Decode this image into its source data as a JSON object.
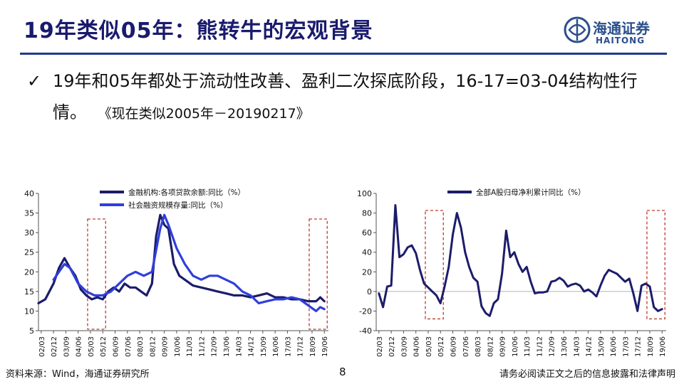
{
  "slide": {
    "title": "19年类似05年：熊转牛的宏观背景",
    "bullet_mark": "✓",
    "bullet_main": "19年和05年都处于流动性改善、盈利二次探底阶段，16-17=03-04结构性行情。",
    "bullet_citation": "《现在类似2005年－20190217》",
    "page_number": "8",
    "source": "资料来源：Wind，海通证券研究所",
    "disclaimer": "请务必阅读正文之后的信息披露和法律声明"
  },
  "logo": {
    "text_cn": "海通证券",
    "text_en": "HAITONG",
    "icon": "haitong-logo-icon",
    "color": "#2a4e8c"
  },
  "colors": {
    "title": "#1a1a6e",
    "rule": "#1f3b8a",
    "series_dark": "#1c1c6b",
    "series_bright": "#2f3fdc",
    "highlight": "#c0392b"
  },
  "chart_data": [
    {
      "type": "line",
      "ylim": [
        5,
        40
      ],
      "yticks": [
        5,
        10,
        15,
        20,
        25,
        30,
        35,
        40
      ],
      "x_tick_labels": [
        "02/03",
        "02/12",
        "03/09",
        "04/06",
        "05/03",
        "05/12",
        "06/09",
        "07/06",
        "08/03",
        "08/12",
        "09/09",
        "10/06",
        "11/03",
        "11/12",
        "12/09",
        "13/06",
        "14/03",
        "14/12",
        "15/09",
        "16/06",
        "17/03",
        "17/12",
        "18/09",
        "19/06"
      ],
      "highlight_ranges": [
        [
          "05/03",
          "05/12"
        ],
        [
          "18/09",
          "19/06"
        ]
      ],
      "legend_position": "top-left",
      "series": [
        {
          "name": "金融机构:各项贷款余额:同比（%）",
          "x": [
            "02/01",
            "02/06",
            "02/12",
            "03/04",
            "03/08",
            "03/12",
            "04/04",
            "04/08",
            "04/12",
            "05/04",
            "05/08",
            "05/12",
            "06/04",
            "06/08",
            "06/12",
            "07/04",
            "07/08",
            "07/12",
            "08/04",
            "08/08",
            "08/12",
            "09/03",
            "09/06",
            "09/09",
            "09/12",
            "10/04",
            "10/08",
            "10/12",
            "11/06",
            "11/12",
            "12/06",
            "12/12",
            "13/06",
            "13/12",
            "14/06",
            "14/12",
            "15/06",
            "15/12",
            "16/06",
            "16/12",
            "17/06",
            "17/12",
            "18/06",
            "18/12",
            "19/03",
            "19/06"
          ],
          "values": [
            12,
            13,
            17,
            21,
            23.5,
            21,
            19,
            15.5,
            14,
            13,
            13.5,
            13,
            15,
            16,
            15,
            17,
            16,
            16,
            15,
            14,
            17,
            29,
            34.5,
            32,
            31,
            22,
            19,
            18,
            16.5,
            16,
            15.5,
            15,
            14.5,
            14,
            14,
            13.5,
            14,
            14.5,
            13.5,
            13.5,
            13,
            13,
            12.5,
            12.5,
            13.5,
            12.5
          ]
        },
        {
          "name": "社会融资规模存量:同比（%）",
          "x": [
            "02/12",
            "03/08",
            "03/12",
            "04/06",
            "04/12",
            "05/06",
            "05/12",
            "06/06",
            "06/12",
            "07/06",
            "07/12",
            "08/06",
            "08/12",
            "09/06",
            "09/09",
            "09/12",
            "10/06",
            "10/12",
            "11/06",
            "11/12",
            "12/06",
            "12/12",
            "13/06",
            "13/12",
            "14/06",
            "14/12",
            "15/06",
            "15/12",
            "16/06",
            "16/12",
            "17/06",
            "17/12",
            "18/06",
            "18/12",
            "19/03",
            "19/06"
          ],
          "values": [
            18,
            22,
            21,
            17,
            15,
            14,
            14,
            15,
            17,
            19,
            20,
            19,
            20,
            31,
            34.5,
            32,
            26,
            22,
            19,
            18,
            19,
            19,
            18,
            17,
            15,
            14,
            12,
            12.5,
            13,
            13,
            13.5,
            13,
            11.5,
            10,
            11,
            10.5
          ]
        }
      ]
    },
    {
      "type": "line",
      "ylim": [
        -40,
        100
      ],
      "yticks": [
        -40,
        -20,
        0,
        20,
        40,
        60,
        80,
        100
      ],
      "x_tick_labels": [
        "02/03",
        "02/12",
        "03/09",
        "04/06",
        "05/03",
        "05/12",
        "06/09",
        "07/06",
        "08/03",
        "08/12",
        "09/09",
        "10/06",
        "11/03",
        "11/12",
        "12/09",
        "13/06",
        "14/03",
        "14/12",
        "15/09",
        "16/06",
        "17/03",
        "17/12",
        "18/09",
        "19/06"
      ],
      "highlight_ranges": [
        [
          "05/03",
          "05/12"
        ],
        [
          "18/09",
          "19/06"
        ]
      ],
      "legend_position": "top-left",
      "series": [
        {
          "name": "全部A股归母净利累计同比（%）",
          "x": [
            "02/03",
            "02/06",
            "02/09",
            "02/12",
            "03/03",
            "03/06",
            "03/09",
            "03/12",
            "04/03",
            "04/06",
            "04/09",
            "04/12",
            "05/03",
            "05/06",
            "05/09",
            "05/12",
            "06/03",
            "06/06",
            "06/09",
            "06/12",
            "07/03",
            "07/06",
            "07/09",
            "07/12",
            "08/03",
            "08/06",
            "08/09",
            "08/12",
            "09/03",
            "09/06",
            "09/09",
            "09/12",
            "10/03",
            "10/06",
            "10/09",
            "10/12",
            "11/03",
            "11/06",
            "11/09",
            "11/12",
            "12/03",
            "12/06",
            "12/09",
            "12/12",
            "13/03",
            "13/06",
            "13/09",
            "13/12",
            "14/03",
            "14/06",
            "14/09",
            "14/12",
            "15/03",
            "15/06",
            "15/09",
            "15/12",
            "16/03",
            "16/06",
            "16/09",
            "16/12",
            "17/03",
            "17/06",
            "17/09",
            "17/12",
            "18/03",
            "18/06",
            "18/09",
            "18/12",
            "19/03",
            "19/06"
          ],
          "values": [
            -2,
            -16,
            5,
            6,
            88,
            35,
            38,
            45,
            47,
            39,
            22,
            8,
            4,
            0,
            -4,
            -12,
            5,
            25,
            58,
            80,
            65,
            40,
            25,
            14,
            10,
            -15,
            -22,
            -25,
            -12,
            -8,
            18,
            62,
            35,
            40,
            28,
            20,
            25,
            10,
            -2,
            -1,
            -1,
            0,
            10,
            11,
            14,
            11,
            5,
            7,
            8,
            6,
            0,
            2,
            -1,
            -5,
            6,
            16,
            22,
            20,
            18,
            14,
            10,
            13,
            -2,
            -20,
            6,
            8,
            5,
            -16,
            -20,
            -18
          ]
        }
      ]
    }
  ]
}
